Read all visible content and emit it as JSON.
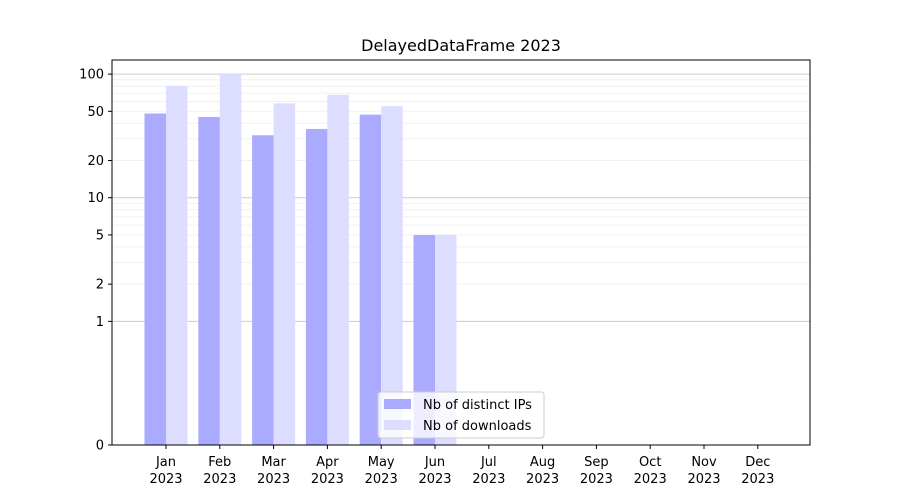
{
  "chart_data": {
    "type": "bar",
    "title": "DelayedDataFrame 2023",
    "xlabel": "",
    "ylabel": "",
    "y_scale": "symlog",
    "ylim": [
      0,
      130
    ],
    "y_ticks": [
      "0",
      "1",
      "2",
      "5",
      "10",
      "20",
      "50",
      "100"
    ],
    "grid": "horizontal",
    "legend_position": "lower-center",
    "categories": [
      [
        "Jan",
        "2023"
      ],
      [
        "Feb",
        "2023"
      ],
      [
        "Mar",
        "2023"
      ],
      [
        "Apr",
        "2023"
      ],
      [
        "May",
        "2023"
      ],
      [
        "Jun",
        "2023"
      ],
      [
        "Jul",
        "2023"
      ],
      [
        "Aug",
        "2023"
      ],
      [
        "Sep",
        "2023"
      ],
      [
        "Oct",
        "2023"
      ],
      [
        "Nov",
        "2023"
      ],
      [
        "Dec",
        "2023"
      ]
    ],
    "series": [
      {
        "name": "Nb of distinct IPs",
        "color": "#aaaaff",
        "values": [
          48,
          45,
          32,
          36,
          47,
          5,
          0,
          0,
          0,
          0,
          0,
          0
        ]
      },
      {
        "name": "Nb of downloads",
        "color": "#ddddff",
        "values": [
          80,
          100,
          58,
          68,
          55,
          5,
          0,
          0,
          0,
          0,
          0,
          0
        ]
      }
    ]
  }
}
